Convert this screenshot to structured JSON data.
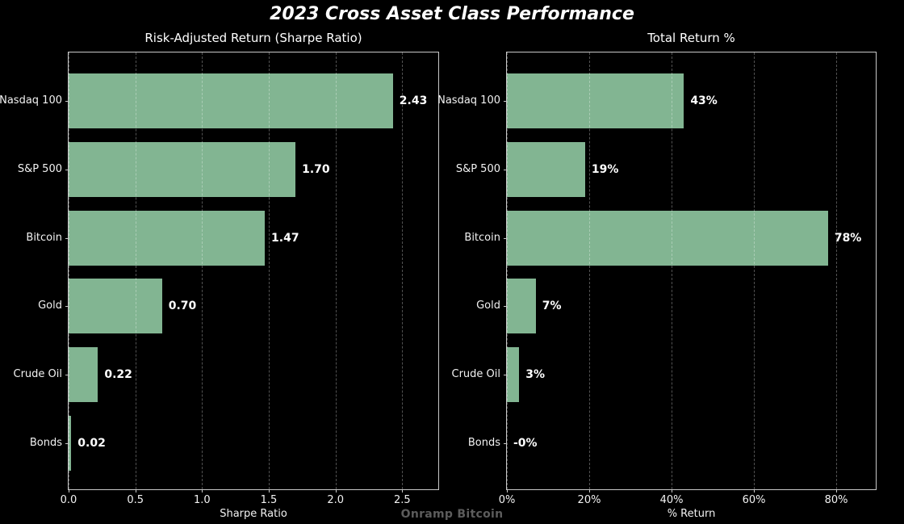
{
  "title": "2023 Cross Asset Class Performance",
  "watermark": "Onramp Bitcoin",
  "colors": {
    "background": "#000000",
    "bar": "#82b592",
    "text": "#ffffff",
    "spine": "#c8c8c8",
    "grid": "rgba(255,255,255,0.32)",
    "watermark": "#5c5c5c"
  },
  "chart_data": [
    {
      "type": "bar",
      "orientation": "horizontal",
      "title": "Risk-Adjusted Return (Sharpe Ratio)",
      "categories": [
        "Nasdaq 100",
        "S&P 500",
        "Bitcoin",
        "Gold",
        "Crude Oil",
        "Bonds"
      ],
      "values": [
        2.43,
        1.7,
        1.47,
        0.7,
        0.22,
        0.02
      ],
      "value_labels": [
        "2.43",
        "1.70",
        "1.47",
        "0.70",
        "0.22",
        "0.02"
      ],
      "xlabel": "Sharpe Ratio",
      "xticks": [
        0.0,
        0.5,
        1.0,
        1.5,
        2.0,
        2.5
      ],
      "xtick_labels": [
        "0.0",
        "0.5",
        "1.0",
        "1.5",
        "2.0",
        "2.5"
      ],
      "xlim": [
        0,
        2.77
      ],
      "grid": true,
      "legend": false
    },
    {
      "type": "bar",
      "orientation": "horizontal",
      "title": "Total Return %",
      "categories": [
        "Nasdaq 100",
        "S&P 500",
        "Bitcoin",
        "Gold",
        "Crude Oil",
        "Bonds"
      ],
      "values": [
        43,
        19,
        78,
        7,
        3,
        -0.2
      ],
      "value_labels": [
        "43%",
        "19%",
        "78%",
        "7%",
        "3%",
        "-0%"
      ],
      "xlabel": "% Return",
      "xticks": [
        0,
        20,
        40,
        60,
        80
      ],
      "xtick_labels": [
        "0%",
        "20%",
        "40%",
        "60%",
        "80%"
      ],
      "xlim": [
        0,
        89.6
      ],
      "grid": true,
      "legend": false
    }
  ]
}
